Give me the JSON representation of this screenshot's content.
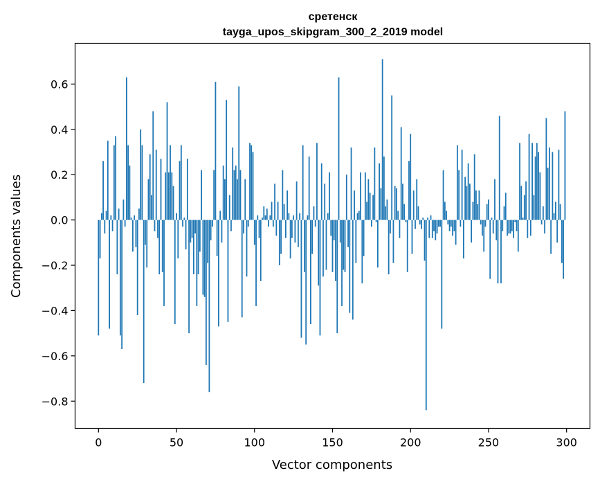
{
  "chart_data": {
    "type": "bar",
    "title": "сретенск",
    "subtitle": "tayga_upos_skipgram_300_2_2019 model",
    "xlabel": "Vector components",
    "ylabel": "Components values",
    "xlim": [
      -15,
      315
    ],
    "ylim": [
      -0.92,
      0.78
    ],
    "xticks": [
      0,
      50,
      100,
      150,
      200,
      250,
      300
    ],
    "xtick_labels": [
      "0",
      "50",
      "100",
      "150",
      "200",
      "250",
      "300"
    ],
    "yticks": [
      -0.8,
      -0.6,
      -0.4,
      -0.2,
      0.0,
      0.2,
      0.4,
      0.6
    ],
    "ytick_labels": [
      "−0.8",
      "−0.6",
      "−0.4",
      "−0.2",
      "0.0",
      "0.2",
      "0.4",
      "0.6"
    ],
    "bar_color": "#1f77b4",
    "grid": false,
    "values": [
      -0.51,
      -0.17,
      0.03,
      0.26,
      -0.06,
      0.04,
      0.35,
      -0.48,
      0.02,
      -0.05,
      0.33,
      0.37,
      -0.24,
      0.05,
      -0.51,
      -0.57,
      0.09,
      -0.03,
      0.63,
      0.33,
      0.24,
      0.01,
      -0.14,
      0.02,
      -0.12,
      -0.42,
      0.05,
      0.4,
      0.33,
      -0.72,
      -0.11,
      -0.21,
      0.18,
      0.29,
      0.11,
      0.48,
      -0.05,
      0.31,
      -0.08,
      -0.24,
      0.27,
      -0.23,
      -0.38,
      0.21,
      0.52,
      0.21,
      0.33,
      0.21,
      0.15,
      -0.46,
      0.03,
      -0.17,
      0.26,
      0.33,
      -0.03,
      0.01,
      -0.13,
      0.27,
      -0.5,
      -0.1,
      -0.08,
      -0.24,
      -0.06,
      -0.38,
      -0.24,
      -0.14,
      0.22,
      -0.33,
      -0.34,
      -0.64,
      -0.19,
      -0.76,
      -0.09,
      -0.03,
      0.22,
      0.61,
      -0.16,
      -0.47,
      0.04,
      -0.1,
      0.24,
      0.18,
      0.53,
      -0.45,
      0.11,
      -0.05,
      0.32,
      0.22,
      0.24,
      0.18,
      0.59,
      0.22,
      -0.43,
      -0.06,
      0.18,
      -0.25,
      -0.03,
      0.34,
      0.33,
      0.3,
      -0.11,
      -0.38,
      0.02,
      -0.08,
      -0.27,
      0.01,
      0.06,
      0.02,
      0.05,
      -0.03,
      0.02,
      0.08,
      -0.03,
      0.16,
      -0.07,
      0.08,
      -0.2,
      -0.15,
      0.22,
      0.07,
      -0.08,
      0.13,
      0.03,
      -0.17,
      -0.08,
      0.02,
      -0.1,
      0.17,
      -0.12,
      0.03,
      -0.52,
      0.33,
      -0.23,
      -0.55,
      0.02,
      0.28,
      -0.46,
      -0.15,
      0.06,
      -0.03,
      0.34,
      -0.29,
      -0.51,
      0.25,
      -0.25,
      0.16,
      -0.22,
      0.03,
      0.21,
      -0.07,
      -0.23,
      -0.09,
      -0.27,
      -0.5,
      0.63,
      -0.1,
      -0.38,
      -0.22,
      -0.23,
      0.2,
      -0.12,
      -0.41,
      0.32,
      -0.44,
      0.13,
      -0.19,
      0.03,
      0.04,
      0.21,
      -0.28,
      -0.16,
      0.21,
      0.08,
      0.18,
      0.12,
      -0.03,
      0.11,
      0.32,
      -0.01,
      -0.21,
      0.25,
      0.14,
      0.71,
      0.28,
      0.06,
      0.09,
      -0.24,
      -0.06,
      0.55,
      -0.19,
      0.15,
      0.14,
      0.04,
      -0.08,
      0.41,
      0.16,
      0.07,
      -0.01,
      -0.23,
      0.26,
      0.38,
      -0.15,
      0.13,
      -0.04,
      0.18,
      0.06,
      -0.02,
      -0.04,
      0.01,
      -0.18,
      -0.84,
      0.01,
      -0.08,
      0.02,
      -0.08,
      -0.05,
      -0.09,
      -0.06,
      -0.03,
      -0.03,
      -0.48,
      0.22,
      0.08,
      0.04,
      -0.02,
      -0.05,
      -0.03,
      -0.07,
      -0.05,
      -0.11,
      0.33,
      0.22,
      -0.03,
      0.31,
      -0.17,
      0.19,
      0.15,
      0.25,
      0.16,
      -0.1,
      0.08,
      0.29,
      0.13,
      0.07,
      0.13,
      -0.02,
      -0.07,
      -0.14,
      -0.03,
      0.07,
      0.09,
      -0.26,
      0.01,
      -0.06,
      0.18,
      -0.09,
      -0.28,
      0.46,
      -0.28,
      -0.05,
      0.06,
      0.12,
      -0.07,
      -0.06,
      -0.06,
      -0.05,
      -0.08,
      -0.01,
      -0.05,
      -0.14,
      0.34,
      0.15,
      0.01,
      0.11,
      0.17,
      -0.08,
      0.38,
      -0.07,
      0.34,
      0.11,
      0.28,
      0.34,
      0.3,
      0.21,
      -0.02,
      0.06,
      -0.06,
      0.45,
      0.23,
      0.32,
      -0.15,
      0.3,
      0.03,
      0.08,
      -0.1,
      0.31,
      0.07,
      -0.19,
      -0.26,
      0.48
    ]
  }
}
